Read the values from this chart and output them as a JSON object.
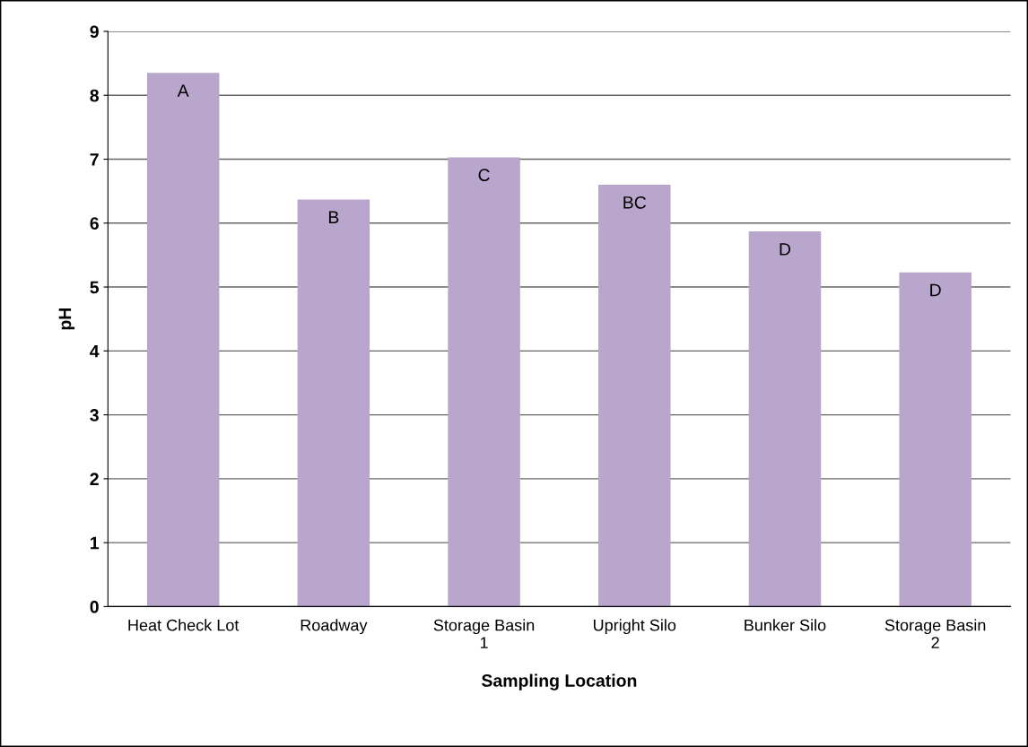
{
  "chart_data": {
    "type": "bar",
    "xlabel": "Sampling Location",
    "ylabel": "pH",
    "categories": [
      "Heat Check Lot",
      "Roadway",
      "Storage Basin\n1",
      "Upright Silo",
      "Bunker Silo",
      "Storage Basin\n2"
    ],
    "values": [
      8.35,
      6.37,
      7.03,
      6.6,
      5.87,
      5.23
    ],
    "value_labels": [
      "A",
      "B",
      "C",
      "BC",
      "D",
      "D"
    ],
    "color": "#b8a6cc",
    "ylim": [
      0,
      9
    ],
    "yticks": [
      0,
      1,
      2,
      3,
      4,
      5,
      6,
      7,
      8,
      9
    ],
    "grid": "y"
  }
}
